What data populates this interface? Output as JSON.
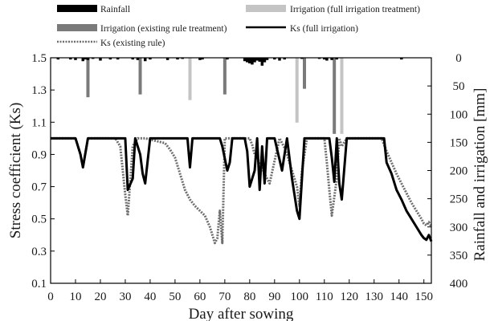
{
  "chart_data": {
    "type": "combo-bar-line",
    "xlabel": "Day after sowing",
    "ylabel_left": "Stress coefficient (Ks)",
    "ylabel_right": "Rainfall and irrigation [mm]",
    "xlim": [
      0,
      153
    ],
    "xticks": [
      "0",
      "10",
      "20",
      "30",
      "40",
      "50",
      "60",
      "70",
      "80",
      "90",
      "100",
      "110",
      "120",
      "130",
      "140",
      "150"
    ],
    "ylim_left": [
      0.1,
      1.5
    ],
    "yticks_left": [
      "1.5",
      "1.3",
      "1.1",
      "0.9",
      "0.7",
      "0.5",
      "0.3",
      "0.1"
    ],
    "ylim_right_inverted": [
      0,
      400
    ],
    "yticks_right": [
      "0",
      "50",
      "100",
      "150",
      "200",
      "250",
      "300",
      "350",
      "400"
    ],
    "legend": [
      {
        "name": "Rainfall"
      },
      {
        "name": "Irrigation (full irrigation treatment)"
      },
      {
        "name": "Irrigation (existing rule treatment)"
      },
      {
        "name": "Ks (full irrigation)"
      },
      {
        "name": "Ks (existing rule)"
      }
    ],
    "colors": {
      "rainfall": "#000000",
      "irrigation_full": "#c4c4c4",
      "irrigation_existing": "#7a7a7a",
      "ks_full": "#000000",
      "ks_existing": "#6e6e6e"
    },
    "rainfall": {
      "x": [
        3,
        8,
        10,
        13,
        14,
        15,
        17,
        20,
        24,
        27,
        33,
        35,
        38,
        40,
        47,
        51,
        53,
        60,
        61,
        71,
        78,
        79,
        80,
        81,
        82,
        83,
        84,
        85,
        86,
        87,
        90,
        92,
        94,
        101,
        108,
        110,
        111,
        113,
        115,
        141
      ],
      "y": [
        3,
        3,
        4,
        6,
        3,
        4,
        2,
        5,
        3,
        3,
        3,
        4,
        6,
        3,
        4,
        3,
        2,
        4,
        3,
        3,
        6,
        8,
        10,
        12,
        8,
        5,
        7,
        14,
        8,
        4,
        3,
        5,
        3,
        2,
        2,
        3,
        5,
        4,
        3,
        3
      ]
    },
    "irrigation_existing": {
      "x": [
        15,
        36,
        70,
        102,
        114
      ],
      "y": [
        70,
        65,
        65,
        55,
        135
      ]
    },
    "irrigation_full": {
      "x": [
        56,
        99,
        117
      ],
      "y": [
        75,
        115,
        135
      ]
    },
    "ks_full": {
      "x": [
        0,
        10,
        12,
        13,
        15,
        30,
        31,
        33,
        34,
        36,
        37,
        38,
        40,
        55,
        56,
        57,
        60,
        68,
        69,
        71,
        72,
        73,
        76,
        78,
        79,
        80,
        82,
        83,
        84,
        85,
        86,
        87,
        90,
        93,
        95,
        97,
        99,
        100,
        102,
        112,
        113,
        114,
        115,
        116,
        117,
        119,
        120,
        134,
        135,
        137,
        139,
        141,
        143,
        145,
        147,
        149,
        150,
        151,
        152,
        153
      ],
      "y": [
        1.0,
        1.0,
        0.9,
        0.82,
        1.0,
        1.0,
        0.68,
        0.75,
        1.0,
        0.9,
        0.78,
        0.72,
        1.0,
        1.0,
        0.82,
        1.0,
        1.0,
        1.0,
        0.95,
        0.8,
        0.85,
        1.0,
        1.0,
        1.0,
        0.92,
        0.7,
        0.8,
        1.0,
        0.68,
        0.95,
        0.72,
        1.0,
        1.0,
        0.8,
        1.0,
        0.75,
        0.55,
        0.5,
        1.0,
        1.0,
        0.88,
        0.73,
        1.0,
        0.72,
        0.62,
        1.0,
        1.0,
        1.0,
        0.85,
        0.78,
        0.68,
        0.62,
        0.55,
        0.5,
        0.45,
        0.4,
        0.38,
        0.37,
        0.4,
        0.36
      ]
    },
    "ks_existing": {
      "x": [
        0,
        10,
        12,
        13,
        15,
        26,
        28,
        30,
        31,
        33,
        34,
        35,
        38,
        46,
        48,
        50,
        52,
        54,
        56,
        58,
        60,
        62,
        64,
        65,
        66,
        67,
        68,
        69,
        70,
        80,
        81,
        82,
        84,
        86,
        88,
        92,
        94,
        95,
        97,
        99,
        100,
        101,
        103,
        110,
        111,
        112,
        113,
        115,
        116,
        117,
        119,
        133,
        135,
        137,
        139,
        141,
        143,
        145,
        147,
        149,
        150,
        151,
        152,
        153
      ],
      "y": [
        1.0,
        1.0,
        0.9,
        0.82,
        1.0,
        1.0,
        0.95,
        0.65,
        0.52,
        0.95,
        0.98,
        1.0,
        1.0,
        0.97,
        0.93,
        0.88,
        0.78,
        0.68,
        0.62,
        0.58,
        0.55,
        0.52,
        0.45,
        0.4,
        0.35,
        0.38,
        0.55,
        0.35,
        1.0,
        1.0,
        0.96,
        0.9,
        0.85,
        0.78,
        0.72,
        1.0,
        0.94,
        0.9,
        0.8,
        0.7,
        0.58,
        0.8,
        1.0,
        1.0,
        0.85,
        0.68,
        0.52,
        0.75,
        1.0,
        0.95,
        1.0,
        1.0,
        0.92,
        0.85,
        0.78,
        0.72,
        0.66,
        0.6,
        0.55,
        0.5,
        0.47,
        0.46,
        0.48,
        0.45
      ]
    }
  }
}
